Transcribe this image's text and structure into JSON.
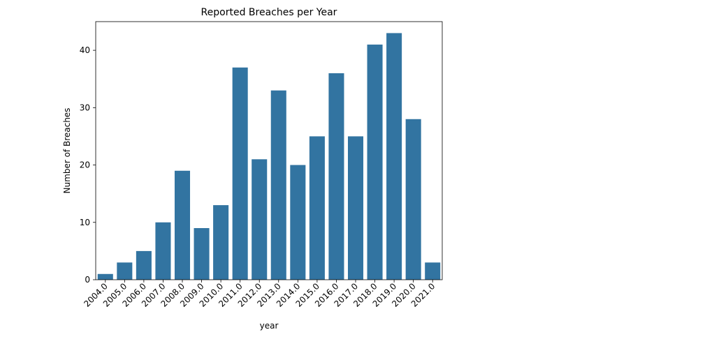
{
  "chart_data": {
    "type": "bar",
    "title": "Reported Breaches per Year",
    "xlabel": "year",
    "ylabel": "Number of Breaches",
    "categories": [
      "2004.0",
      "2005.0",
      "2006.0",
      "2007.0",
      "2008.0",
      "2009.0",
      "2010.0",
      "2011.0",
      "2012.0",
      "2013.0",
      "2014.0",
      "2015.0",
      "2016.0",
      "2017.0",
      "2018.0",
      "2019.0",
      "2020.0",
      "2021.0"
    ],
    "values": [
      1,
      3,
      5,
      10,
      19,
      9,
      13,
      37,
      21,
      33,
      20,
      25,
      36,
      25,
      41,
      43,
      28,
      3
    ],
    "ylim": [
      0,
      45
    ],
    "yticks": [
      0,
      10,
      20,
      30,
      40
    ],
    "grid": false,
    "bar_color": "#3274a1"
  }
}
